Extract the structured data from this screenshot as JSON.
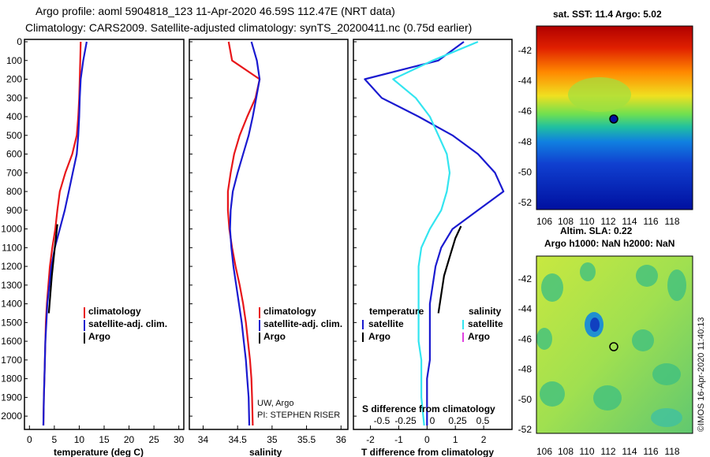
{
  "titles": {
    "line1": "Argo profile: aoml 5904818_123 11-Apr-2020 46.59S 112.47E (NRT data)",
    "line2": "Climatology: CARS2009. Satellite-adjusted climatology: synTS_20200411.nc (0.75d earlier)"
  },
  "colors": {
    "climatology": "#e8161a",
    "satellite": "#1a1ad0",
    "argo": "#000000",
    "satellite_s": "#33e5f0",
    "argo_s": "#e040e0"
  },
  "depth_ticks": [
    "0",
    "100",
    "200",
    "300",
    "400",
    "500",
    "600",
    "700",
    "800",
    "900",
    "1000",
    "1100",
    "1200",
    "1300",
    "1400",
    "1500",
    "1600",
    "1700",
    "1800",
    "1900",
    "2000"
  ],
  "legends": {
    "climatology": "climatology",
    "satellite_adj": "satellite-adj. clim.",
    "argo": "Argo",
    "temperature": "temperature",
    "salinity": "salinity",
    "satellite": "satellite"
  },
  "notes": {
    "uw": "UW, Argo",
    "pi": "PI: STEPHEN RISER",
    "s_diff": "S difference from climatology",
    "watermark": "©IMOS 16-Apr-2020 11:40:13"
  },
  "maps": {
    "sst_title": "sat. SST: 11.4 Argo: 5.02",
    "sla_title1": "Altim. SLA: 0.22",
    "sla_title2": "Argo h1000: NaN h2000: NaN",
    "sst_yticks": [
      "-42",
      "-44",
      "-46",
      "-48",
      "-50",
      "-52"
    ],
    "sla_yticks": [
      "-42",
      "-44",
      "-46",
      "-48",
      "-50",
      "-52"
    ],
    "xticks": [
      "106",
      "108",
      "110",
      "112",
      "114",
      "116",
      "118"
    ]
  },
  "chart_data": [
    {
      "type": "line",
      "panel": "temperature",
      "xlabel": "temperature (deg C)",
      "xlim": [
        -1,
        31
      ],
      "ylim": [
        2050,
        0
      ],
      "xticks": [
        0,
        5,
        10,
        15,
        20,
        25,
        30
      ],
      "series": [
        {
          "name": "climatology",
          "color": "#e8161a",
          "x": [
            10.3,
            10.2,
            10.1,
            10.0,
            9.8,
            9.5,
            8.6,
            7.2,
            6.1,
            5.6,
            5.2,
            4.6,
            4.1,
            3.8,
            3.5,
            3.3,
            3.2,
            3.1,
            3.0,
            2.9,
            2.8
          ],
          "y": [
            0,
            100,
            200,
            300,
            400,
            500,
            600,
            700,
            800,
            900,
            1000,
            1100,
            1200,
            1300,
            1400,
            1500,
            1600,
            1700,
            1800,
            1900,
            2050
          ]
        },
        {
          "name": "satellite-adj. clim.",
          "color": "#1a1ad0",
          "x": [
            11.5,
            10.8,
            10.3,
            10.1,
            10.0,
            9.8,
            9.5,
            8.7,
            7.9,
            7.1,
            6.1,
            5.1,
            4.4,
            4.0,
            3.6,
            3.4,
            3.2,
            3.1,
            3.0,
            2.9,
            2.8
          ],
          "y": [
            0,
            100,
            200,
            300,
            400,
            500,
            600,
            700,
            800,
            900,
            1000,
            1100,
            1200,
            1300,
            1400,
            1500,
            1600,
            1700,
            1800,
            1900,
            2050
          ]
        },
        {
          "name": "Argo",
          "color": "#000000",
          "x": [
            5.6,
            5.3,
            4.9,
            4.5,
            4.2,
            3.9
          ],
          "y": [
            975,
            1050,
            1150,
            1250,
            1350,
            1450
          ]
        }
      ]
    },
    {
      "type": "line",
      "panel": "salinity",
      "xlabel": "salinity",
      "xlim": [
        33.8,
        36.1
      ],
      "ylim": [
        2050,
        0
      ],
      "xticks": [
        34,
        34.5,
        35,
        35.5,
        36
      ],
      "series": [
        {
          "name": "climatology",
          "color": "#e8161a",
          "x": [
            34.37,
            34.42,
            34.82,
            34.76,
            34.64,
            34.53,
            34.45,
            34.4,
            34.36,
            34.36,
            34.38,
            34.42,
            34.47,
            34.53,
            34.58,
            34.62,
            34.65,
            34.68,
            34.7,
            34.71,
            34.72
          ],
          "y": [
            0,
            100,
            200,
            300,
            400,
            500,
            600,
            700,
            800,
            900,
            1000,
            1100,
            1200,
            1300,
            1400,
            1500,
            1600,
            1700,
            1800,
            1900,
            2050
          ]
        },
        {
          "name": "satellite-adj. clim.",
          "color": "#1a1ad0",
          "x": [
            34.7,
            34.78,
            34.82,
            34.77,
            34.72,
            34.66,
            34.58,
            34.5,
            34.43,
            34.4,
            34.39,
            34.41,
            34.44,
            34.48,
            34.52,
            34.56,
            34.59,
            34.62,
            34.64,
            34.66,
            34.67
          ],
          "y": [
            0,
            100,
            200,
            300,
            400,
            500,
            600,
            700,
            800,
            900,
            1000,
            1100,
            1200,
            1300,
            1400,
            1500,
            1600,
            1700,
            1800,
            1900,
            2050
          ]
        }
      ]
    },
    {
      "type": "line",
      "panel": "difference",
      "xlabel": "T difference from climatology",
      "xlim": [
        -2.6,
        3.0
      ],
      "ylim": [
        2050,
        0
      ],
      "xticks": [
        -2,
        -1,
        0,
        1,
        2
      ],
      "s_xticks": [
        "-0.5",
        "-0.25",
        "0",
        "0.25",
        "0.5"
      ],
      "series": [
        {
          "name": "temperature satellite",
          "color": "#1a1ad0",
          "x": [
            1.3,
            0.4,
            -2.2,
            -1.6,
            -0.3,
            0.9,
            1.8,
            2.4,
            2.7,
            1.8,
            0.9,
            0.5,
            0.3,
            0.2,
            0.1,
            0.1,
            0.1,
            0.1,
            0.0,
            0.0,
            0.0
          ],
          "y": [
            0,
            100,
            200,
            300,
            400,
            500,
            600,
            700,
            800,
            900,
            1000,
            1100,
            1200,
            1300,
            1400,
            1500,
            1600,
            1700,
            1800,
            1900,
            2050
          ]
        },
        {
          "name": "salinity satellite",
          "color": "#33e5f0",
          "x": [
            1.8,
            0.2,
            -1.2,
            -0.4,
            0.1,
            0.4,
            0.7,
            0.8,
            0.7,
            0.5,
            0.1,
            -0.2,
            -0.3,
            -0.3,
            -0.3,
            -0.3,
            -0.3,
            -0.2,
            -0.2,
            -0.2,
            -0.1
          ],
          "y": [
            0,
            100,
            200,
            300,
            400,
            500,
            600,
            700,
            800,
            900,
            1000,
            1100,
            1200,
            1300,
            1400,
            1500,
            1600,
            1700,
            1800,
            1900,
            2050
          ]
        },
        {
          "name": "temperature Argo",
          "color": "#000000",
          "x": [
            1.2,
            1.0,
            0.8,
            0.6,
            0.5,
            0.4
          ],
          "y": [
            985,
            1050,
            1150,
            1250,
            1350,
            1450
          ]
        }
      ]
    }
  ]
}
